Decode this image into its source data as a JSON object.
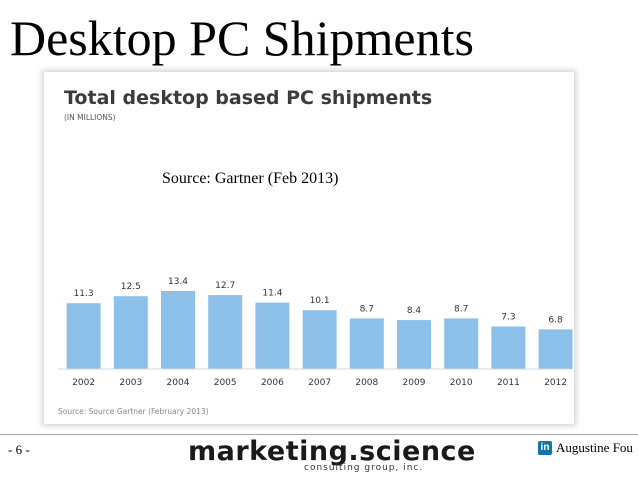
{
  "slide": {
    "title": "Desktop PC Shipments",
    "source_overlay": "Source: Gartner (Feb 2013)",
    "page_number": "- 6 -",
    "brand": {
      "name": "marketing.science",
      "tagline": "consulting group, inc."
    },
    "author": {
      "icon": "linkedin-icon",
      "icon_glyph": "in",
      "name": "Augustine Fou"
    }
  },
  "chart_data": {
    "type": "bar",
    "title": "Total desktop based PC shipments",
    "subtitle": "(IN MILLIONS)",
    "source_note": "Source: Source Gartner (February 2013)",
    "categories": [
      "2002",
      "2003",
      "2004",
      "2005",
      "2006",
      "2007",
      "2008",
      "2009",
      "2010",
      "2011",
      "2012"
    ],
    "values": [
      11.3,
      12.5,
      13.4,
      12.7,
      11.4,
      10.1,
      8.7,
      8.4,
      8.7,
      7.3,
      6.8
    ],
    "value_labels": [
      "11.3",
      "12.5",
      "13.4",
      "12.7",
      "11.4",
      "10.1",
      "8.7",
      "8.4",
      "8.7",
      "7.3",
      "6.8"
    ],
    "xlabel": "",
    "ylabel": "",
    "ylim": [
      0,
      13.4
    ],
    "grid": false,
    "bar_color": "#8dc0e8",
    "axis_color": "#cfd8e0"
  }
}
